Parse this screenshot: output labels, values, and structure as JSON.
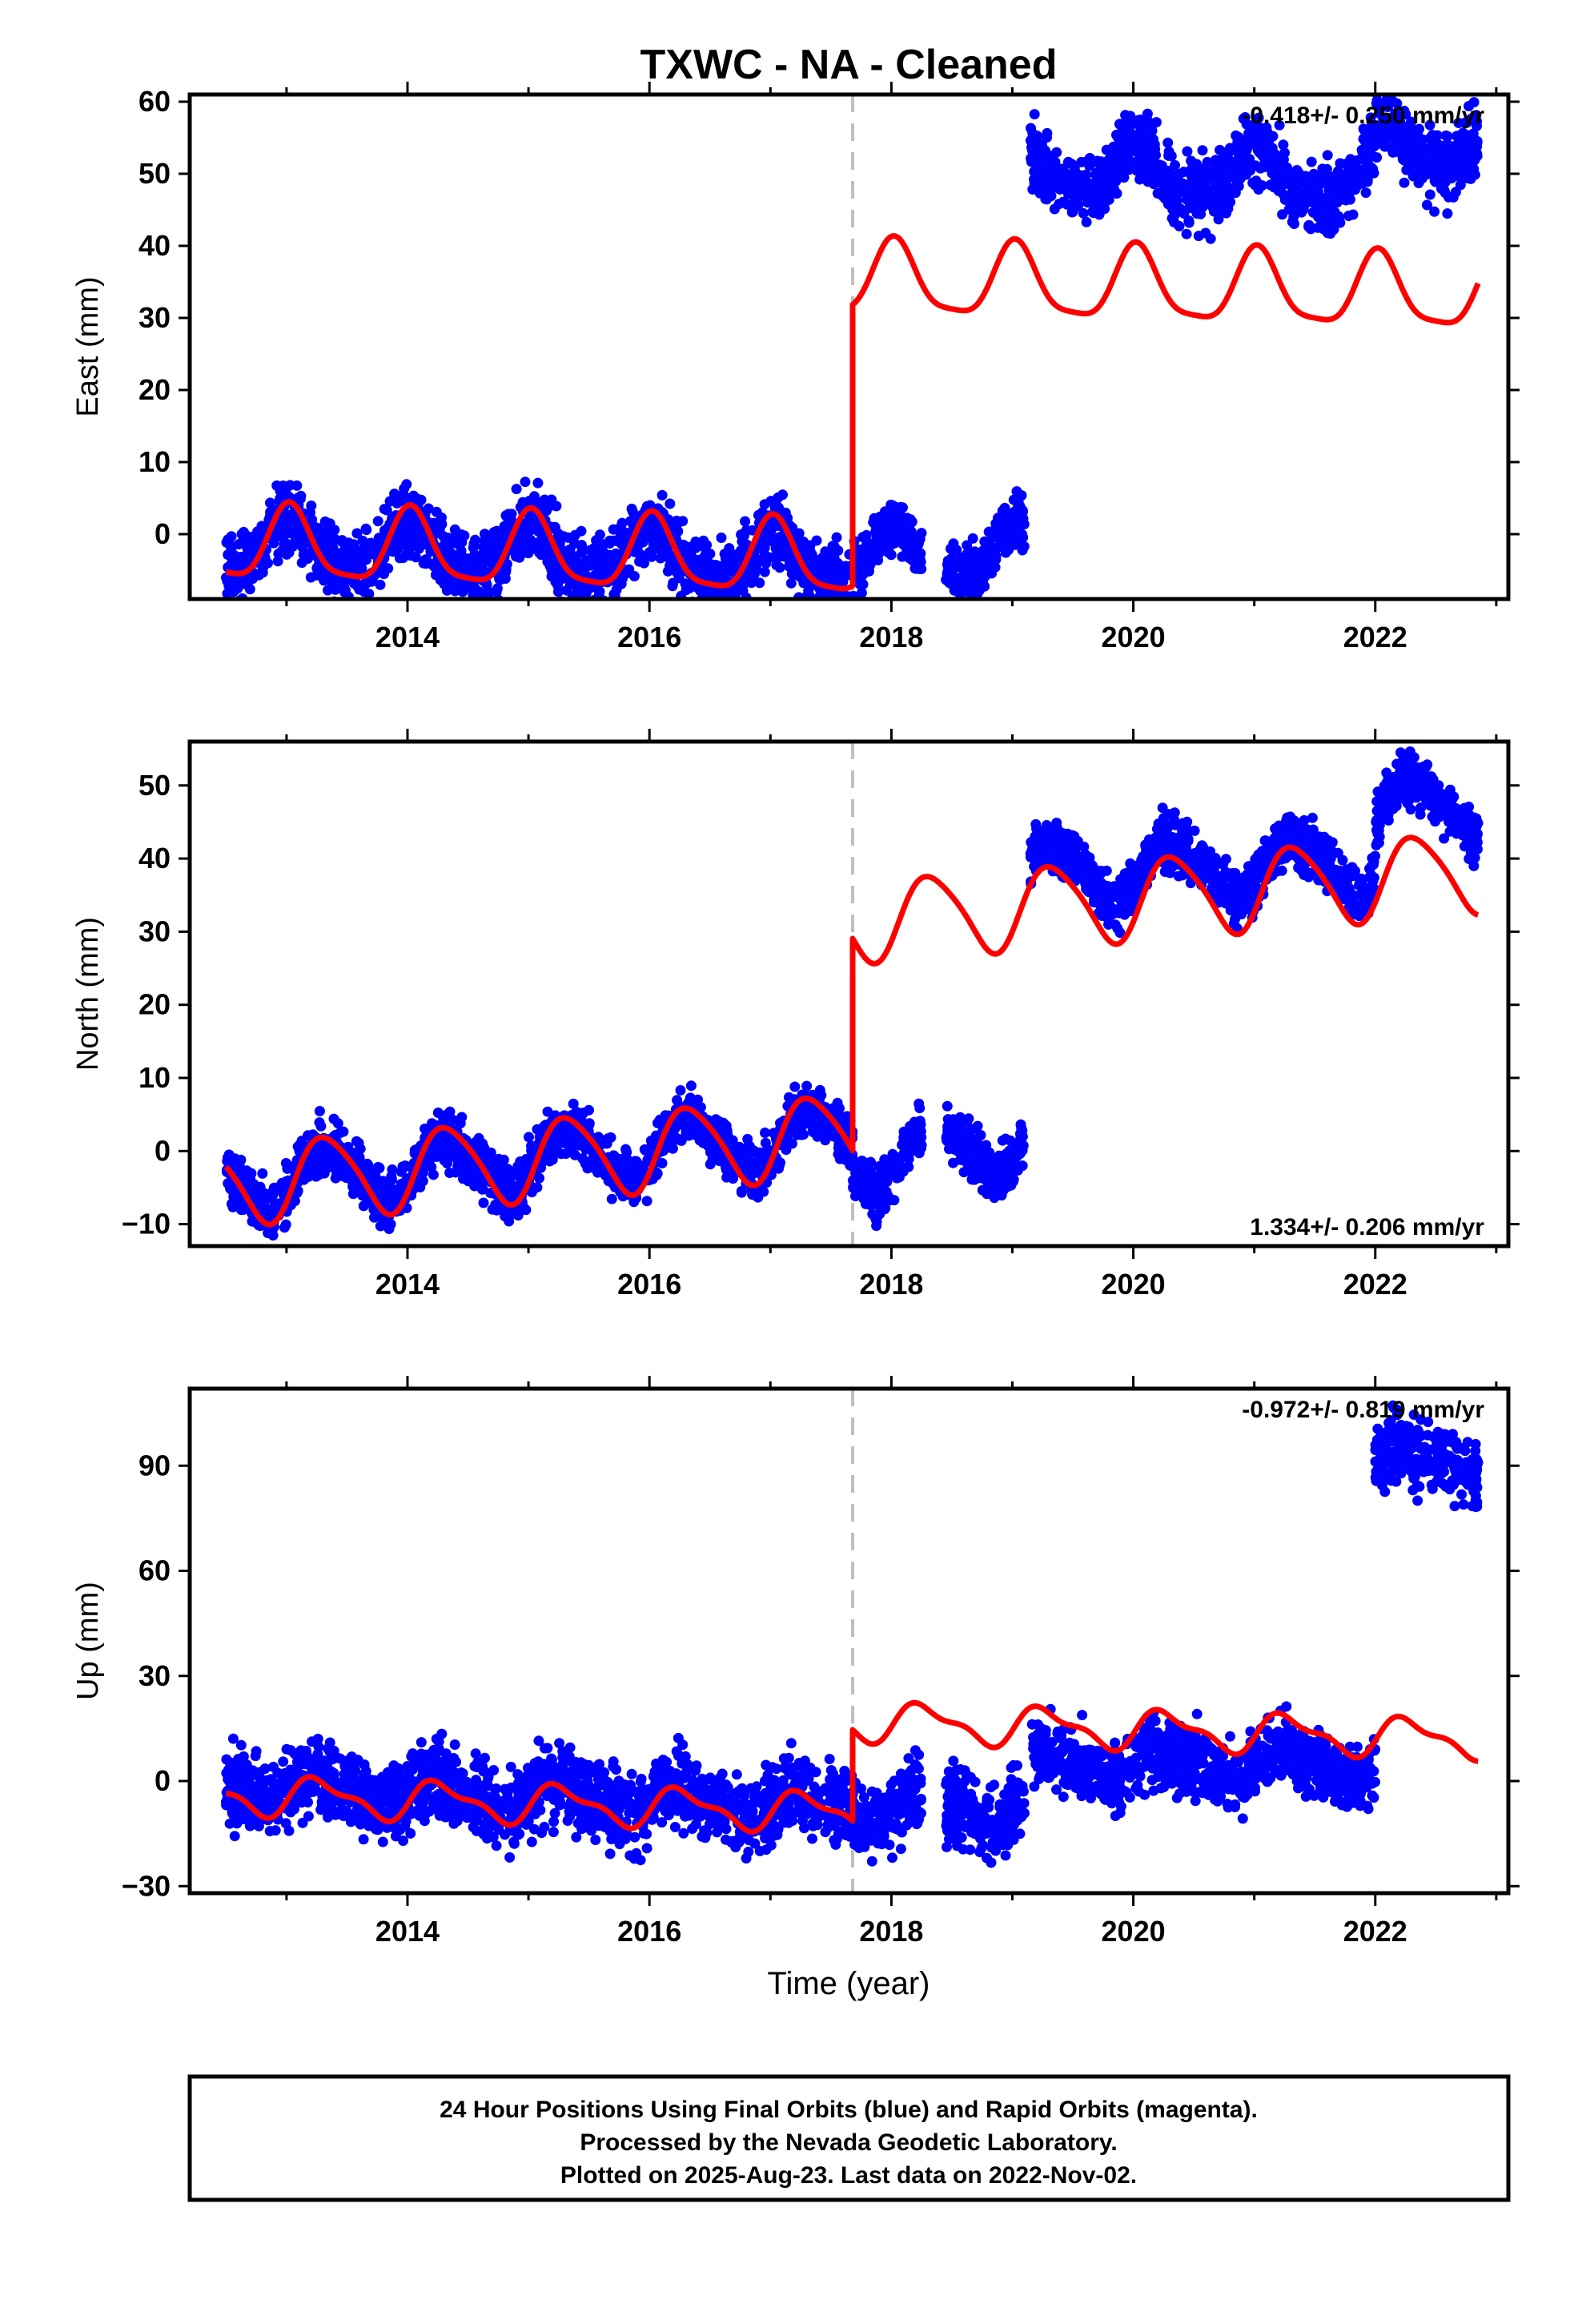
{
  "title": "TXWC  - NA - Cleaned",
  "colors": {
    "data": "#0000ff",
    "model": "#ff0000",
    "break_line": "#c0c0c0",
    "frame": "#000000"
  },
  "chart_data": [
    {
      "type": "scatter",
      "component": "east",
      "ylabel": "East (mm)",
      "xlim": [
        2012.2,
        2023.1
      ],
      "ylim": [
        -9,
        61
      ],
      "yticks": [
        0,
        10,
        20,
        30,
        40,
        50,
        60
      ],
      "xticks": [
        2014,
        2016,
        2018,
        2020,
        2022
      ],
      "rate_label": "-0.418+/- 0.250 mm/yr",
      "rate_position": "top-right",
      "break_epoch": 2017.68,
      "series": [
        {
          "role": "final-orbits-points",
          "segments": [
            {
              "x_start": 2012.5,
              "x_end": 2017.68,
              "y_mean": -1.5,
              "slope": -0.418,
              "spread": 4
            },
            {
              "x_start": 2017.68,
              "x_end": 2018.25,
              "y_mean": -3.0,
              "slope": 0,
              "spread": 3
            },
            {
              "x_start": 2018.45,
              "x_end": 2019.1,
              "y_mean": -2.8,
              "slope": 0,
              "spread": 3
            },
            {
              "x_start": 2019.15,
              "x_end": 2022.0,
              "y_mean": 50.5,
              "slope": -0.418,
              "spread": 4
            },
            {
              "x_start": 2022.0,
              "x_end": 2022.85,
              "y_mean": 54.0,
              "slope": 0,
              "spread": 4
            }
          ]
        },
        {
          "role": "model-fit",
          "segments": [
            {
              "x_start": 2012.5,
              "x_end": 2017.68,
              "base": -1.5,
              "slope": -0.418,
              "amp_annual": 5.0,
              "amp_semi": 1.2,
              "phase_deg": 80
            },
            {
              "x_start": 2017.68,
              "x_end": 2022.85,
              "base": 37.5,
              "slope": -0.418,
              "amp_annual": 5.0,
              "amp_semi": 1.2,
              "phase_deg": 80
            }
          ]
        }
      ]
    },
    {
      "type": "scatter",
      "component": "north",
      "ylabel": "North (mm)",
      "xlim": [
        2012.2,
        2023.1
      ],
      "ylim": [
        -13,
        56
      ],
      "yticks": [
        -10,
        0,
        10,
        20,
        30,
        40,
        50
      ],
      "xticks": [
        2014,
        2016,
        2018,
        2020,
        2022
      ],
      "rate_label": "1.334+/- 0.206 mm/yr",
      "rate_position": "bottom-right",
      "break_epoch": 2017.68,
      "series": [
        {
          "role": "final-orbits-points",
          "segments": [
            {
              "x_start": 2012.5,
              "x_end": 2017.68,
              "y_mean": -4.5,
              "slope": 1.334,
              "spread": 3
            },
            {
              "x_start": 2017.68,
              "x_end": 2018.25,
              "y_mean": -1.0,
              "slope": 0,
              "spread": 3
            },
            {
              "x_start": 2018.45,
              "x_end": 2019.1,
              "y_mean": 1.0,
              "slope": 0,
              "spread": 3
            },
            {
              "x_start": 2019.15,
              "x_end": 2022.0,
              "y_mean": 38.0,
              "slope": 0.5,
              "spread": 3
            },
            {
              "x_start": 2022.0,
              "x_end": 2022.85,
              "y_mean": 47.0,
              "slope": 0,
              "spread": 3
            }
          ]
        },
        {
          "role": "model-fit",
          "segments": [
            {
              "x_start": 2012.5,
              "x_end": 2017.68,
              "base": -4.5,
              "slope": 1.334,
              "amp_annual": 5.5,
              "amp_semi": 0.8,
              "phase_deg": -30
            },
            {
              "x_start": 2017.68,
              "x_end": 2022.85,
              "base": 24.5,
              "slope": 1.334,
              "amp_annual": 5.5,
              "amp_semi": 0.8,
              "phase_deg": -30
            }
          ]
        }
      ]
    },
    {
      "type": "scatter",
      "component": "up",
      "ylabel": "Up (mm)",
      "xlabel": "Time (year)",
      "xlim": [
        2012.2,
        2023.1
      ],
      "ylim": [
        -32,
        112
      ],
      "yticks": [
        -30,
        0,
        30,
        60,
        90
      ],
      "xticks": [
        2014,
        2016,
        2018,
        2020,
        2022
      ],
      "rate_label": "-0.972+/- 0.819 mm/yr",
      "rate_position": "top-right",
      "break_epoch": 2017.68,
      "series": [
        {
          "role": "final-orbits-points",
          "segments": [
            {
              "x_start": 2012.5,
              "x_end": 2017.68,
              "y_mean": -2.0,
              "slope": -0.972,
              "spread": 9
            },
            {
              "x_start": 2017.68,
              "x_end": 2018.25,
              "y_mean": -8.0,
              "slope": 0,
              "spread": 8
            },
            {
              "x_start": 2018.45,
              "x_end": 2019.1,
              "y_mean": -8.0,
              "slope": 0,
              "spread": 9
            },
            {
              "x_start": 2019.15,
              "x_end": 2022.0,
              "y_mean": 5.0,
              "slope": 0,
              "spread": 8
            },
            {
              "x_start": 2022.0,
              "x_end": 2022.85,
              "y_mean": 91.0,
              "slope": 0,
              "spread": 8
            }
          ]
        },
        {
          "role": "model-fit",
          "segments": [
            {
              "x_start": 2012.5,
              "x_end": 2017.68,
              "base": -4.0,
              "slope": -0.972,
              "amp_annual": 5.0,
              "amp_semi": 2.0,
              "phase_deg": -10
            },
            {
              "x_start": 2017.68,
              "x_end": 2022.85,
              "base": 22.0,
              "slope": -0.972,
              "amp_annual": 5.0,
              "amp_semi": 2.0,
              "phase_deg": -10
            }
          ]
        }
      ]
    }
  ],
  "footer": {
    "line1": "24 Hour Positions Using Final Orbits (blue) and Rapid Orbits (magenta).",
    "line2": "Processed by the Nevada Geodetic Laboratory.",
    "line3": "Plotted on 2025-Aug-23. Last data on 2022-Nov-02."
  }
}
